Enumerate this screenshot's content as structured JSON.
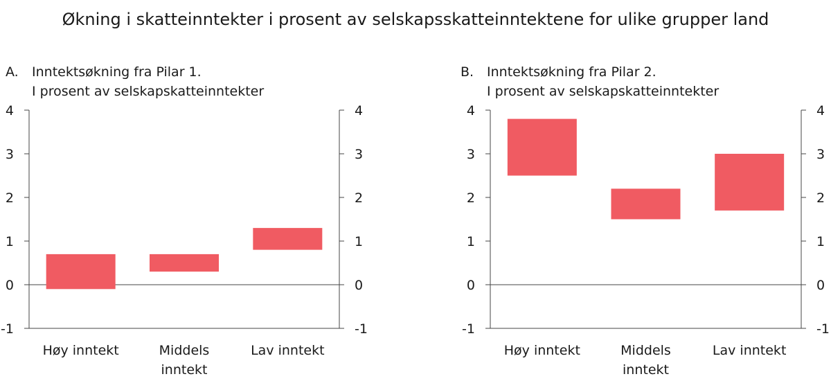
{
  "title": "Økning i skatteinntekter i prosent av selskapsskatteinntektene for ulike grupper land",
  "colors": {
    "bar": "#f05b62",
    "axis": "#444444"
  },
  "chart_data": [
    {
      "type": "bar",
      "panel_letter": "A.",
      "title": "Inntektsøkning fra Pilar 1.",
      "subtitle": "I prosent av selskapskatteinntekter",
      "categories": [
        [
          "Høy inntekt"
        ],
        [
          "Middels",
          "inntekt"
        ],
        [
          "Lav inntekt"
        ]
      ],
      "ranges": [
        [
          -0.1,
          0.7
        ],
        [
          0.3,
          0.7
        ],
        [
          0.8,
          1.3
        ]
      ],
      "ylim": [
        -1,
        4
      ],
      "yticks": [
        "-1",
        "0",
        "1",
        "2",
        "3",
        "4"
      ],
      "xlabel": "",
      "ylabel": ""
    },
    {
      "type": "bar",
      "panel_letter": "B.",
      "title": "Inntektsøkning fra Pilar 2.",
      "subtitle": "I prosent av selskapskatteinntekter",
      "categories": [
        [
          "Høy inntekt"
        ],
        [
          "Middels",
          "inntekt"
        ],
        [
          "Lav inntekt"
        ]
      ],
      "ranges": [
        [
          2.5,
          3.8
        ],
        [
          1.5,
          2.2
        ],
        [
          1.7,
          3.0
        ]
      ],
      "ylim": [
        -1,
        4
      ],
      "yticks": [
        "-1",
        "0",
        "1",
        "2",
        "3",
        "4"
      ],
      "xlabel": "",
      "ylabel": ""
    }
  ]
}
